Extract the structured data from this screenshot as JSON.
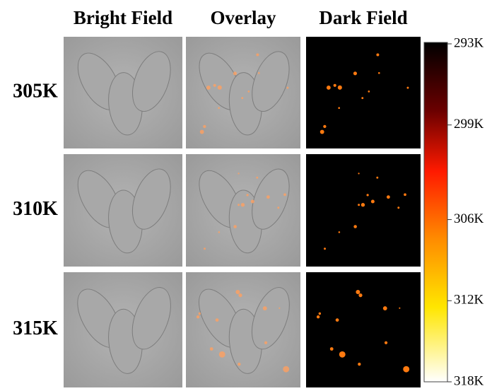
{
  "columns": [
    "Bright Field",
    "Overlay",
    "Dark Field"
  ],
  "rows": [
    "305K",
    "310K",
    "315K"
  ],
  "colorbar": {
    "lim": [
      293,
      318
    ],
    "ticks": [
      {
        "value": 293,
        "label": "293K"
      },
      {
        "value": 299,
        "label": "299K"
      },
      {
        "value": 306,
        "label": "306K"
      },
      {
        "value": 312,
        "label": "312K"
      },
      {
        "value": 318,
        "label": "318K"
      }
    ]
  }
}
